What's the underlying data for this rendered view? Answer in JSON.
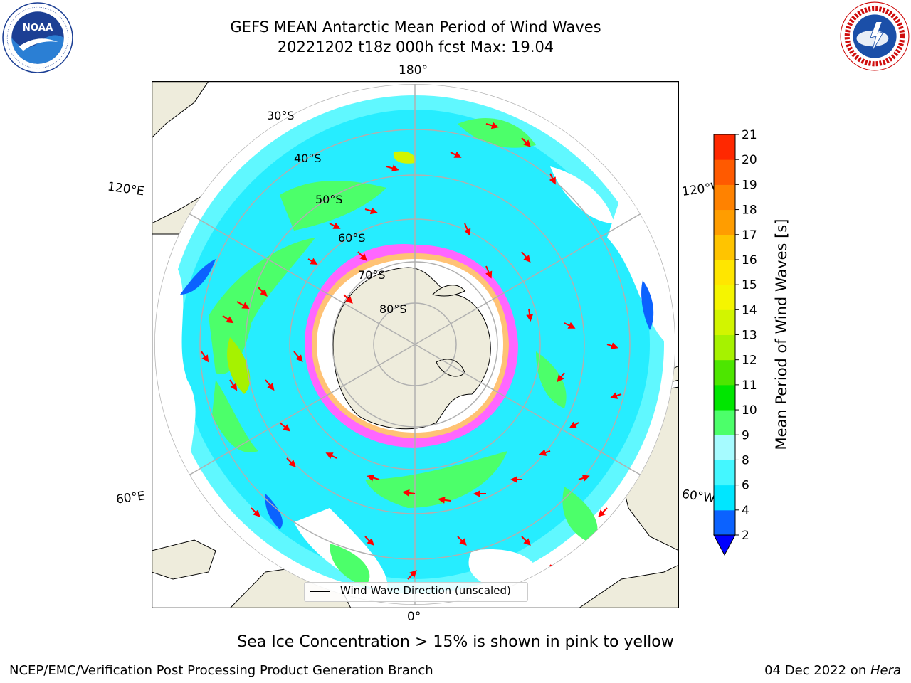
{
  "title": {
    "line1": "GEFS MEAN Antarctic Mean Period of Wind Waves",
    "line2": "20221202 t18z 000h fcst   Max: 19.04"
  },
  "logos": {
    "left": {
      "icon": "noaa-logo",
      "text": "NOAA"
    },
    "right": {
      "icon": "nws-logo",
      "text": "NATIONAL WEATHER SERVICE"
    }
  },
  "map": {
    "projection": "south-polar-stereographic",
    "longitude_labels": {
      "top": "180°",
      "bottom": "0°",
      "left_upper": "120°E",
      "left_lower": "60°E",
      "right_upper": "120°W",
      "right_lower": "60°W"
    },
    "latitude_labels": [
      "30°S",
      "40°S",
      "50°S",
      "60°S",
      "70°S",
      "80°S"
    ],
    "legend": "Wind Wave Direction (unscaled)",
    "colors": {
      "land": "#eeecdc",
      "ocean_nodata": "#ffffff",
      "arrow": "#ff0000",
      "grid": "#b0b0b0",
      "sea_ice_low": "#ff66ff",
      "sea_ice_high": "#ffcc66"
    }
  },
  "colorbar": {
    "label": "Mean Period of Wind Waves [s]",
    "ticks": [
      "2",
      "4",
      "6",
      "8",
      "9",
      "10",
      "11",
      "12",
      "13",
      "14",
      "15",
      "16",
      "17",
      "18",
      "19",
      "20",
      "21"
    ],
    "colors": [
      "#0b62ff",
      "#00e6ff",
      "#44f7ff",
      "#a6fbff",
      "#4cff6a",
      "#00e600",
      "#4de600",
      "#a6f200",
      "#d2f500",
      "#f5f500",
      "#ffe600",
      "#ffc400",
      "#ff9d00",
      "#ff8200",
      "#ff5a00",
      "#ff2800"
    ],
    "extend_color": "#0000ff"
  },
  "notes": {
    "sea_ice": "Sea Ice Concentration > 15% is shown in pink to yellow",
    "footer_left": "NCEP/EMC/Verification Post Processing Product Generation Branch",
    "footer_right_date": "04 Dec 2022 on ",
    "footer_right_machine": "Hera"
  }
}
